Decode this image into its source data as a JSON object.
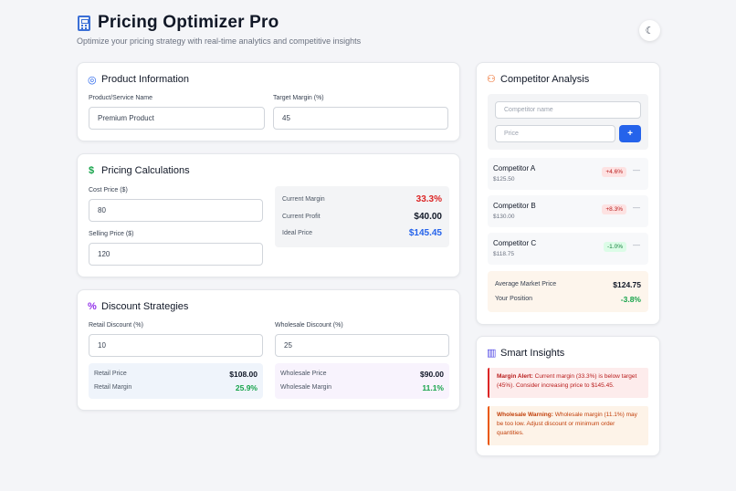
{
  "header": {
    "title": "Pricing Optimizer Pro",
    "subtitle": "Optimize your pricing strategy with real-time analytics and competitive insights"
  },
  "product": {
    "title": "Product Information",
    "name_label": "Product/Service Name",
    "name_value": "Premium Product",
    "margin_label": "Target Margin (%)",
    "margin_value": "45"
  },
  "calc": {
    "title": "Pricing Calculations",
    "cost_label": "Cost Price ($)",
    "cost_value": "80",
    "selling_label": "Selling Price ($)",
    "selling_value": "120",
    "current_margin_label": "Current Margin",
    "current_margin_value": "33.3%",
    "current_profit_label": "Current Profit",
    "current_profit_value": "$40.00",
    "ideal_price_label": "Ideal Price",
    "ideal_price_value": "$145.45"
  },
  "discount": {
    "title": "Discount Strategies",
    "retail_label": "Retail Discount (%)",
    "retail_value": "10",
    "wholesale_label": "Wholesale Discount (%)",
    "wholesale_value": "25",
    "retail_price_label": "Retail Price",
    "retail_price_value": "$108.00",
    "retail_margin_label": "Retail Margin",
    "retail_margin_value": "25.9%",
    "wholesale_price_label": "Wholesale Price",
    "wholesale_price_value": "$90.00",
    "wholesale_margin_label": "Wholesale Margin",
    "wholesale_margin_value": "11.1%"
  },
  "competitors": {
    "title": "Competitor Analysis",
    "name_placeholder": "Competitor name",
    "price_placeholder": "Price",
    "add_label": "+",
    "items": [
      {
        "name": "Competitor A",
        "price": "$125.50",
        "diff": "+4.6%"
      },
      {
        "name": "Competitor B",
        "price": "$130.00",
        "diff": "+8.3%"
      },
      {
        "name": "Competitor C",
        "price": "$118.75",
        "diff": "-1.0%"
      }
    ],
    "remove_label": "—",
    "avg_label": "Average Market Price",
    "avg_value": "$124.75",
    "position_label": "Your Position",
    "position_value": "-3.8%"
  },
  "insights": {
    "title": "Smart Insights",
    "margin_alert_title": "Margin Alert:",
    "margin_alert_text": "Current margin (33.3%) is below target (45%). Consider increasing price to $145.45.",
    "wholesale_title": "Wholesale Warning:",
    "wholesale_text": "Wholesale margin (11.1%) may be too low. Adjust discount or minimum order quantities."
  },
  "colors": {
    "accent": "#2563eb",
    "negative": "#dc2626",
    "positive": "#16a34a"
  },
  "icons": {
    "header": "calculator-icon",
    "theme": "moon-icon",
    "product": "target-icon",
    "calc": "dollar-icon",
    "discount": "percent-icon",
    "competitors": "users-icon",
    "insights": "bar-chart-icon"
  }
}
